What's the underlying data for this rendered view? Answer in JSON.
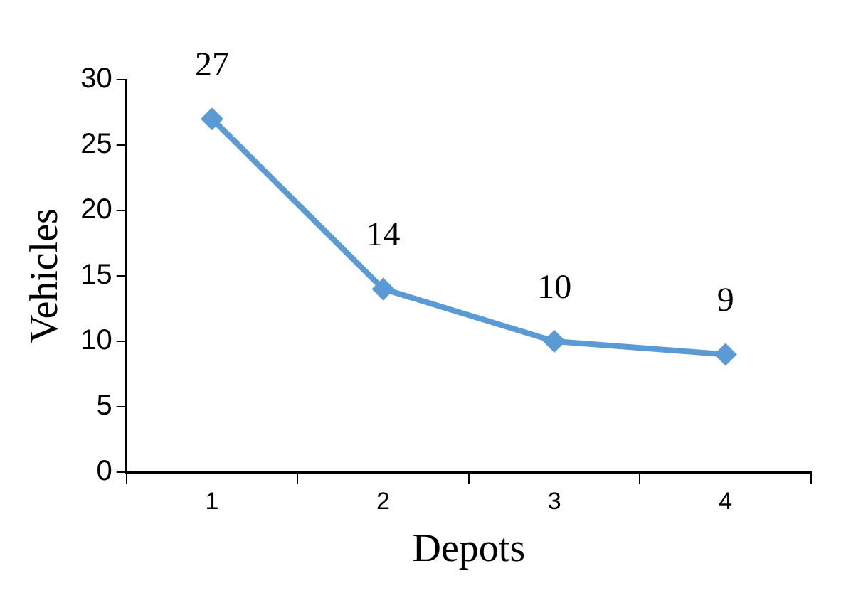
{
  "chart_data": {
    "type": "line",
    "xlabel": "Depots",
    "ylabel": "Vehicles",
    "categories": [
      "1",
      "2",
      "3",
      "4"
    ],
    "series": [
      {
        "color": "#5b9bd5",
        "values": [
          27,
          14,
          10,
          9
        ]
      }
    ],
    "ylim": [
      0,
      30
    ],
    "yticks": [
      0,
      5,
      10,
      15,
      20,
      25,
      30
    ],
    "grid": false,
    "legend": false,
    "marker": "diamond",
    "line_style": "solid",
    "data_labels": true
  }
}
